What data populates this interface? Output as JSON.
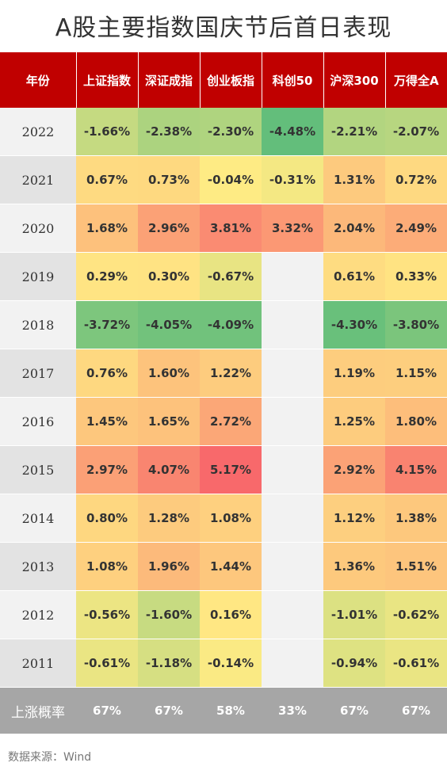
{
  "title": "A股主要指数国庆节后首日表现",
  "watermark": "Wind",
  "source": "数据来源：Wind",
  "chart_data": {
    "type": "heatmap",
    "title": "A股主要指数国庆节后首日表现",
    "header_first": "年份",
    "columns": [
      "上证指数",
      "深证成指",
      "创业板指",
      "科创50",
      "沪深300",
      "万得全A"
    ],
    "rows": [
      {
        "year": "2022",
        "values": [
          -1.66,
          -2.38,
          -2.3,
          -4.48,
          -2.21,
          -2.07
        ]
      },
      {
        "year": "2021",
        "values": [
          0.67,
          0.73,
          -0.04,
          -0.31,
          1.31,
          0.72
        ]
      },
      {
        "year": "2020",
        "values": [
          1.68,
          2.96,
          3.81,
          3.32,
          2.04,
          2.49
        ]
      },
      {
        "year": "2019",
        "values": [
          0.29,
          0.3,
          -0.67,
          null,
          0.61,
          0.33
        ]
      },
      {
        "year": "2018",
        "values": [
          -3.72,
          -4.05,
          -4.09,
          null,
          -4.3,
          -3.8
        ]
      },
      {
        "year": "2017",
        "values": [
          0.76,
          1.6,
          1.22,
          null,
          1.19,
          1.15
        ]
      },
      {
        "year": "2016",
        "values": [
          1.45,
          1.65,
          2.72,
          null,
          1.25,
          1.8
        ]
      },
      {
        "year": "2015",
        "values": [
          2.97,
          4.07,
          5.17,
          null,
          2.92,
          4.15
        ]
      },
      {
        "year": "2014",
        "values": [
          0.8,
          1.28,
          1.08,
          null,
          1.12,
          1.38
        ]
      },
      {
        "year": "2013",
        "values": [
          1.08,
          1.96,
          1.44,
          null,
          1.36,
          1.51
        ]
      },
      {
        "year": "2012",
        "values": [
          -0.56,
          -1.6,
          0.16,
          null,
          -1.01,
          -0.62
        ]
      },
      {
        "year": "2011",
        "values": [
          -0.61,
          -1.18,
          -0.14,
          null,
          -0.94,
          -0.61
        ]
      }
    ],
    "footer_label": "上涨概率",
    "footer_values": [
      "67%",
      "67%",
      "58%",
      "33%",
      "67%",
      "67%"
    ],
    "colors": {
      "header_bg": "#c00000",
      "footer_bg": "#a6a6a6",
      "scale_min": "#63be7b",
      "scale_mid": "#ffeb84",
      "scale_max": "#f8696b"
    }
  }
}
